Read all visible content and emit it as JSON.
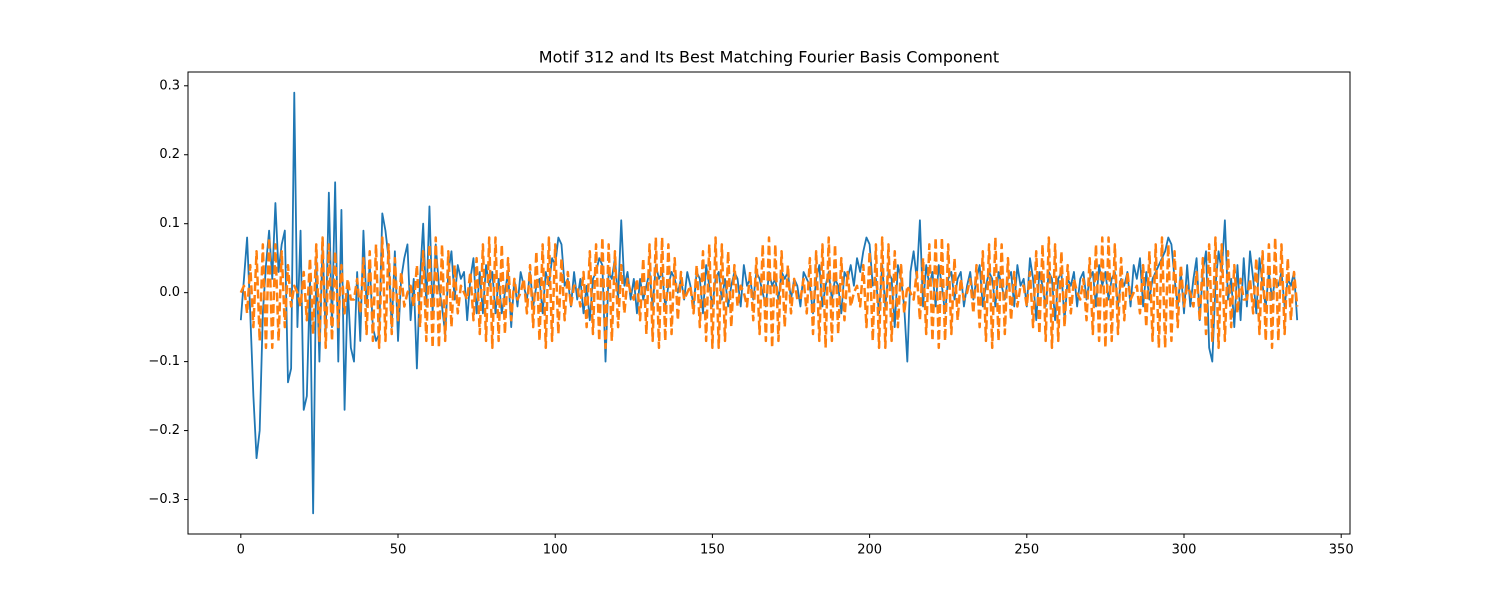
{
  "chart_data": {
    "type": "line",
    "title": "Motif 312 and Its Best Matching Fourier Basis Component",
    "x": [
      0,
      1,
      2,
      3,
      4,
      5,
      6,
      7,
      8,
      9,
      10,
      11,
      12,
      13,
      14,
      15,
      16,
      17,
      18,
      19,
      20,
      21,
      22,
      23,
      24,
      25,
      26,
      27,
      28,
      29,
      30,
      31,
      32,
      33,
      34,
      35,
      36,
      37,
      38,
      39,
      40,
      41,
      42,
      43,
      44,
      45,
      46,
      47,
      48,
      49,
      50,
      51,
      52,
      53,
      54,
      55,
      56,
      57,
      58,
      59,
      60,
      61,
      62,
      63,
      64,
      65,
      66,
      67,
      68,
      69,
      70,
      71,
      72,
      73,
      74,
      75,
      76,
      77,
      78,
      79,
      80,
      81,
      82,
      83,
      84,
      85,
      86,
      87,
      88,
      89,
      90,
      91,
      92,
      93,
      94,
      95,
      96,
      97,
      98,
      99,
      100,
      101,
      102,
      103,
      104,
      105,
      106,
      107,
      108,
      109,
      110,
      111,
      112,
      113,
      114,
      115,
      116,
      117,
      118,
      119,
      120,
      121,
      122,
      123,
      124,
      125,
      126,
      127,
      128,
      129,
      130,
      131,
      132,
      133,
      134,
      135,
      136,
      137,
      138,
      139,
      140,
      141,
      142,
      143,
      144,
      145,
      146,
      147,
      148,
      149,
      150,
      151,
      152,
      153,
      154,
      155,
      156,
      157,
      158,
      159,
      160,
      161,
      162,
      163,
      164,
      165,
      166,
      167,
      168,
      169,
      170,
      171,
      172,
      173,
      174,
      175,
      176,
      177,
      178,
      179,
      180,
      181,
      182,
      183,
      184,
      185,
      186,
      187,
      188,
      189,
      190,
      191,
      192,
      193,
      194,
      195,
      196,
      197,
      198,
      199,
      200,
      201,
      202,
      203,
      204,
      205,
      206,
      207,
      208,
      209,
      210,
      211,
      212,
      213,
      214,
      215,
      216,
      217,
      218,
      219,
      220,
      221,
      222,
      223,
      224,
      225,
      226,
      227,
      228,
      229,
      230,
      231,
      232,
      233,
      234,
      235,
      236,
      237,
      238,
      239,
      240,
      241,
      242,
      243,
      244,
      245,
      246,
      247,
      248,
      249,
      250,
      251,
      252,
      253,
      254,
      255,
      256,
      257,
      258,
      259,
      260,
      261,
      262,
      263,
      264,
      265,
      266,
      267,
      268,
      269,
      270,
      271,
      272,
      273,
      274,
      275,
      276,
      277,
      278,
      279,
      280,
      281,
      282,
      283,
      284,
      285,
      286,
      287,
      288,
      289,
      290,
      291,
      292,
      293,
      294,
      295,
      296,
      297,
      298,
      299,
      300,
      301,
      302,
      303,
      304,
      305,
      306,
      307,
      308,
      309,
      310,
      311,
      312,
      313,
      314,
      315,
      316,
      317,
      318,
      319,
      320,
      321,
      322,
      323,
      324,
      325,
      326,
      327,
      328,
      329,
      330,
      331,
      332,
      333,
      334,
      335,
      336
    ],
    "series": [
      {
        "color": "#1f77b4",
        "linestyle": "solid",
        "values": [
          -0.04,
          0.02,
          0.08,
          -0.03,
          -0.15,
          -0.24,
          -0.2,
          -0.03,
          0.04,
          0.09,
          0.02,
          0.13,
          0.03,
          0.07,
          0.09,
          -0.13,
          -0.11,
          0.29,
          -0.05,
          0.09,
          -0.17,
          -0.15,
          0.02,
          -0.32,
          0.05,
          -0.1,
          0.07,
          -0.06,
          0.145,
          -0.05,
          0.16,
          -0.1,
          0.12,
          -0.17,
          0.01,
          -0.08,
          -0.1,
          0.03,
          -0.07,
          0.09,
          -0.02,
          0.04,
          -0.05,
          -0.07,
          -0.06,
          0.115,
          0.09,
          0.05,
          -0.05,
          0.06,
          -0.07,
          0.02,
          0.05,
          0.07,
          -0.04,
          0.02,
          -0.11,
          0.02,
          0.1,
          -0.02,
          0.125,
          -0.03,
          0.07,
          0.01,
          -0.02,
          -0.06,
          0.03,
          0.06,
          -0.01,
          0.04,
          0.02,
          0.03,
          -0.04,
          0.02,
          0.05,
          -0.03,
          0.03,
          -0.03,
          0.04,
          0.01,
          0.03,
          -0.03,
          0.02,
          -0.03,
          0,
          0.03,
          -0.05,
          0.02,
          -0.02,
          0.03,
          0.01,
          -0.01,
          0.03,
          -0.02,
          0.01,
          0.02,
          -0.03,
          0.03,
          0.01,
          0.05,
          0.04,
          0.08,
          0.07,
          0.01,
          0.02,
          -0.02,
          0.03,
          -0.01,
          0.02,
          -0.03,
          0.01,
          -0.04,
          0.02,
          0.03,
          0.05,
          0.04,
          -0.1,
          0.03,
          0.02,
          0.05,
          -0.01,
          0.105,
          0.01,
          0.03,
          -0.01,
          0.02,
          -0.03,
          0.02,
          -0.01,
          0.01,
          0.03,
          -0.02,
          0.04,
          0.02,
          0.03,
          -0.02,
          0.01,
          0.03,
          0.02,
          0,
          0.02,
          -0.01,
          0.03,
          0.01,
          -0.02,
          0.03,
          0.02,
          -0.03,
          0.04,
          0.01,
          -0.02,
          0.02,
          0.03,
          -0.01,
          0.02,
          -0.02,
          0.01,
          0.03,
          0.02,
          -0.02,
          0.04,
          0.01,
          0.02,
          -0.01,
          0.03,
          0.02,
          0,
          -0.02,
          0.03,
          0.01,
          0.02,
          -0.01,
          0.03,
          0.02,
          0.03,
          -0.01,
          0.02,
          0.01,
          -0.02,
          0.03,
          0.02,
          0.01,
          -0.03,
          0.02,
          0.04,
          -0.02,
          0.01,
          0.03,
          -0.01,
          0.02,
          0.01,
          -0.03,
          0.03,
          0.02,
          0.04,
          0.01,
          0.05,
          0.03,
          0.06,
          0.08,
          0.07,
          0.01,
          0.02,
          -0.03,
          0.04,
          -0.02,
          0.03,
          0.02,
          -0.05,
          0.04,
          0.02,
          -0.02,
          -0.1,
          0.03,
          0.06,
          0.02,
          0.105,
          -0.02,
          0.04,
          0.01,
          0.03,
          -0.02,
          0.04,
          0.01,
          -0.03,
          0.02,
          0.03,
          -0.01,
          0.02,
          0.03,
          -0.02,
          0.01,
          0.03,
          -0.01,
          0.02,
          0.04,
          -0.02,
          0.01,
          0.03,
          0.02,
          -0.02,
          0.03,
          0.01,
          -0.01,
          0.02,
          0.03,
          -0.02,
          0.04,
          0.01,
          0.02,
          -0.02,
          0.05,
          0.02,
          -0.04,
          0.03,
          0.01,
          -0.02,
          0.03,
          0.02,
          -0.04,
          0.02,
          0.03,
          -0.04,
          0.02,
          0.01,
          0.03,
          -0.02,
          0.02,
          0.03,
          -0.01,
          0.02,
          0.03,
          -0.02,
          0.04,
          0.01,
          0.03,
          -0.01,
          0.02,
          0.03,
          -0.02,
          0.02,
          0.01,
          0.03,
          -0.02,
          0.04,
          0.02,
          0.05,
          -0.02,
          0.03,
          -0.01,
          0.02,
          0.03,
          0.04,
          0.05,
          0.06,
          0.08,
          0.07,
          0.02,
          -0.02,
          0.03,
          -0.03,
          0.04,
          -0.02,
          0.02,
          0.05,
          -0.04,
          0.03,
          0.06,
          -0.08,
          -0.1,
          0.01,
          0.06,
          0.03,
          0.105,
          -0.01,
          0.02,
          -0.05,
          0.04,
          -0.04,
          0.05,
          -0.02,
          0.06,
          0.02,
          -0.03,
          0.05,
          0.01,
          -0.02,
          0.03,
          -0.01,
          0.02,
          0.01,
          0.03,
          -0.02,
          0.02,
          0.01,
          0.03,
          -0.04
        ]
      },
      {
        "color": "#ff7f0e",
        "linestyle": "dashed",
        "values": [
          0,
          0.01,
          -0.03,
          0.04,
          -0.05,
          0.06,
          -0.07,
          0.07,
          -0.08,
          0.08,
          -0.08,
          0.07,
          -0.07,
          0.06,
          -0.05,
          0.04,
          -0.02,
          0.01,
          0,
          -0.02,
          0.03,
          -0.04,
          0.05,
          -0.06,
          0.07,
          -0.07,
          0.08,
          -0.08,
          0.07,
          -0.07,
          0.06,
          -0.05,
          0.04,
          -0.03,
          0.02,
          -0.01,
          -0.01,
          0.02,
          -0.03,
          0.05,
          -0.06,
          0.06,
          -0.07,
          0.07,
          -0.08,
          0.08,
          -0.07,
          0.07,
          -0.06,
          0.05,
          -0.04,
          0.03,
          -0.02,
          0,
          0.01,
          -0.02,
          0.04,
          -0.05,
          0.06,
          -0.07,
          0.07,
          -0.08,
          0.08,
          -0.08,
          0.07,
          -0.07,
          0.06,
          -0.05,
          0.04,
          -0.03,
          0.01,
          0,
          -0.01,
          0.03,
          -0.04,
          0.05,
          -0.06,
          0.07,
          -0.07,
          0.08,
          -0.08,
          0.08,
          -0.07,
          0.07,
          -0.06,
          0.05,
          -0.04,
          0.02,
          -0.01,
          0,
          0.02,
          -0.03,
          0.04,
          -0.05,
          0.06,
          -0.07,
          0.07,
          -0.08,
          0.08,
          -0.07,
          0.07,
          -0.06,
          0.05,
          -0.04,
          0.03,
          -0.02,
          0.01,
          0.01,
          -0.02,
          0.03,
          -0.05,
          0.06,
          -0.06,
          0.07,
          -0.07,
          0.08,
          -0.08,
          0.07,
          -0.07,
          0.06,
          -0.05,
          0.04,
          -0.03,
          0.02,
          0,
          -0.01,
          0.02,
          -0.04,
          0.05,
          -0.06,
          0.07,
          -0.07,
          0.08,
          -0.08,
          0.08,
          -0.07,
          0.07,
          -0.06,
          0.05,
          -0.04,
          0.03,
          -0.01,
          0,
          0.01,
          -0.03,
          0.04,
          -0.05,
          0.06,
          -0.07,
          0.07,
          -0.08,
          0.08,
          -0.08,
          0.07,
          -0.07,
          0.06,
          -0.05,
          0.04,
          -0.02,
          0.01,
          0,
          -0.02,
          0.03,
          -0.04,
          0.05,
          -0.06,
          0.07,
          -0.07,
          0.08,
          -0.08,
          0.07,
          -0.07,
          0.06,
          -0.05,
          0.04,
          -0.03,
          0.02,
          -0.01,
          -0.01,
          0.02,
          -0.03,
          0.05,
          -0.06,
          0.06,
          -0.07,
          0.07,
          -0.08,
          0.08,
          -0.07,
          0.07,
          -0.06,
          0.05,
          -0.04,
          0.03,
          -0.02,
          0,
          0.01,
          -0.02,
          0.04,
          -0.05,
          0.06,
          -0.07,
          0.07,
          -0.08,
          0.08,
          -0.08,
          0.07,
          -0.07,
          0.06,
          -0.05,
          0.04,
          -0.03,
          0.01,
          0,
          -0.01,
          0.03,
          -0.04,
          0.05,
          -0.06,
          0.07,
          -0.07,
          0.08,
          -0.08,
          0.08,
          -0.07,
          0.07,
          -0.06,
          0.05,
          -0.04,
          0.02,
          -0.01,
          0,
          0.02,
          -0.03,
          0.04,
          -0.05,
          0.06,
          -0.07,
          0.07,
          -0.08,
          0.08,
          -0.07,
          0.07,
          -0.06,
          0.05,
          -0.04,
          0.03,
          -0.02,
          0.01,
          0.01,
          -0.02,
          0.03,
          -0.05,
          0.06,
          -0.06,
          0.07,
          -0.07,
          0.08,
          -0.08,
          0.07,
          -0.07,
          0.06,
          -0.05,
          0.04,
          -0.03,
          0.02,
          0,
          -0.01,
          0.02,
          -0.04,
          0.05,
          -0.06,
          0.07,
          -0.07,
          0.08,
          -0.08,
          0.08,
          -0.07,
          0.07,
          -0.06,
          0.05,
          -0.04,
          0.03,
          -0.01,
          0,
          0.01,
          -0.03,
          0.04,
          -0.05,
          0.06,
          -0.07,
          0.07,
          -0.08,
          0.08,
          -0.08,
          0.07,
          -0.07,
          0.06,
          -0.05,
          0.04,
          -0.02,
          0.01,
          0,
          -0.02,
          0.03,
          -0.04,
          0.05,
          -0.06,
          0.07,
          -0.07,
          0.08,
          -0.08,
          0.07,
          -0.07,
          0.06,
          -0.05,
          0.04,
          -0.03,
          0.02,
          -0.01,
          -0.01,
          0.02,
          -0.03,
          0.05,
          -0.06,
          0.06,
          -0.07,
          0.07,
          -0.08,
          0.08,
          -0.07,
          0.07,
          -0.06,
          0.05,
          -0.04,
          0.03,
          -0.02
        ]
      }
    ],
    "xlim": [
      -16.8,
      352.8
    ],
    "xticks": [
      0,
      50,
      100,
      150,
      200,
      250,
      300,
      350
    ],
    "ylim": [
      -0.35,
      0.32
    ],
    "yticks": [
      {
        "value": -0.3,
        "label": "−0.3"
      },
      {
        "value": -0.2,
        "label": "−0.2"
      },
      {
        "value": -0.1,
        "label": "−0.1"
      },
      {
        "value": 0,
        "label": "0.0"
      },
      0.1,
      0.2,
      0.3
    ],
    "grid": false
  }
}
